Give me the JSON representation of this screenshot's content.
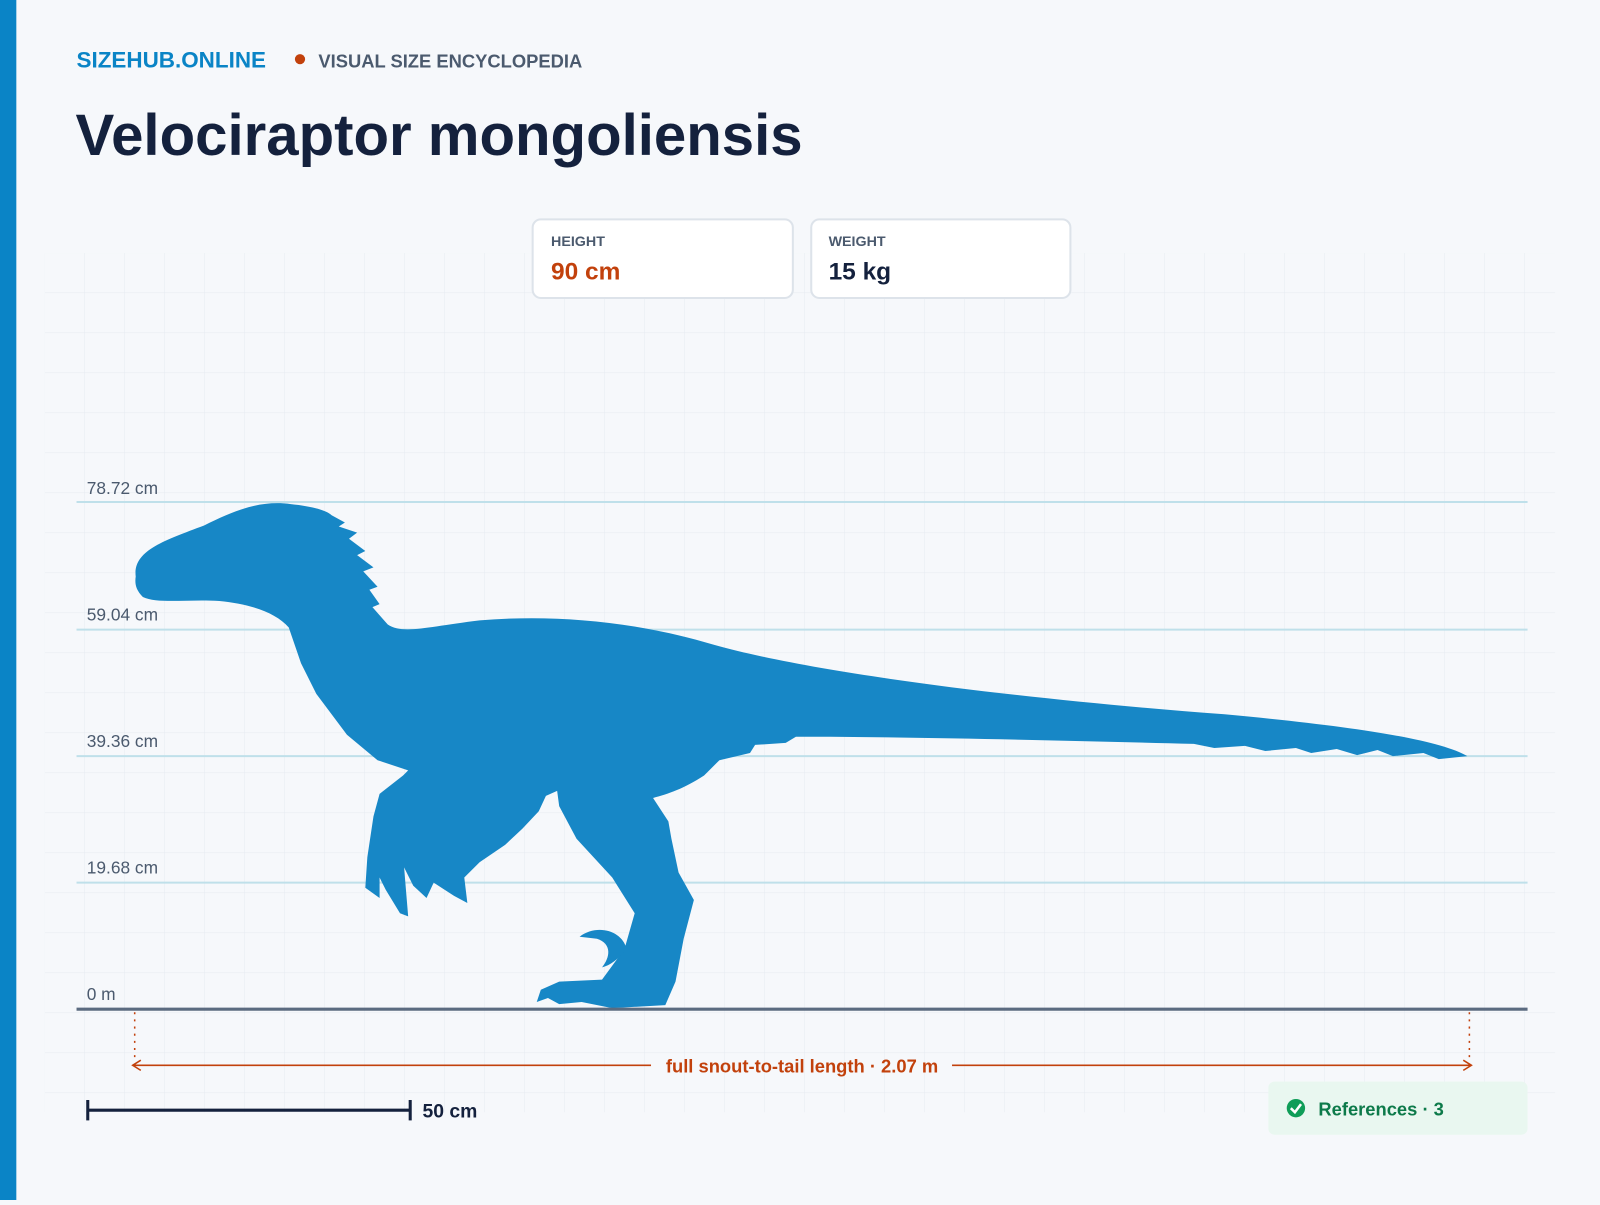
{
  "header": {
    "brand": "SIZEHUB.ONLINE",
    "tagline": "VISUAL SIZE ENCYCLOPEDIA",
    "title": "Velociraptor mongoliensis"
  },
  "stats": [
    {
      "label": "HEIGHT",
      "value": "90 cm"
    },
    {
      "label": "WEIGHT",
      "value": "15 kg"
    }
  ],
  "scale_lines": [
    "78.72 cm",
    "59.04 cm",
    "39.36 cm",
    "19.68 cm",
    "0 m"
  ],
  "length_label": "full snout-to-tail length · 2.07 m",
  "scale_bar": "50 cm",
  "references": "References · 3"
}
